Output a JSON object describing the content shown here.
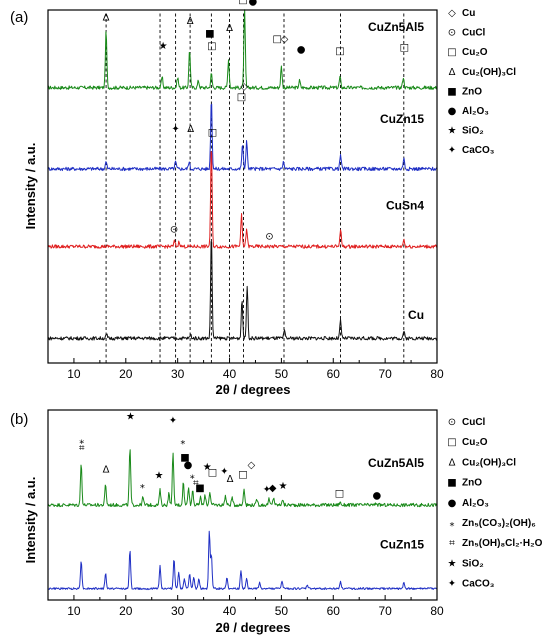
{
  "chart_data": [
    {
      "type": "line",
      "panel_label": "(a)",
      "xlabel": "2θ / degrees",
      "ylabel": "Intensity / a.u.",
      "xlim": [
        5,
        80
      ],
      "xticks": [
        10,
        20,
        30,
        40,
        50,
        60,
        70,
        80
      ],
      "series": [
        {
          "name": "CuZn5Al5",
          "color": "#1a8a1a",
          "offset": 0.78,
          "peaks": [
            [
              16.2,
              0.16
            ],
            [
              27.0,
              0.03
            ],
            [
              30.0,
              0.03
            ],
            [
              32.3,
              0.11
            ],
            [
              34.0,
              0.02
            ],
            [
              36.5,
              0.04
            ],
            [
              39.8,
              0.08
            ],
            [
              42.9,
              0.22
            ],
            [
              50.0,
              0.06
            ],
            [
              53.5,
              0.02
            ],
            [
              61.3,
              0.03
            ],
            [
              73.5,
              0.03
            ]
          ]
        },
        {
          "name": "CuZn15",
          "color": "#1f2fc4",
          "offset": 0.55,
          "peaks": [
            [
              16.2,
              0.02
            ],
            [
              29.6,
              0.02
            ],
            [
              32.2,
              0.02
            ],
            [
              36.5,
              0.2
            ],
            [
              42.5,
              0.07
            ],
            [
              43.3,
              0.08
            ],
            [
              50.4,
              0.02
            ],
            [
              61.4,
              0.04
            ],
            [
              73.6,
              0.03
            ]
          ]
        },
        {
          "name": "CuSn4",
          "color": "#e01f1f",
          "offset": 0.33,
          "peaks": [
            [
              29.4,
              0.015
            ],
            [
              30.3,
              0.015
            ],
            [
              36.5,
              0.29
            ],
            [
              42.3,
              0.09
            ],
            [
              43.3,
              0.05
            ],
            [
              61.4,
              0.05
            ],
            [
              73.6,
              0.02
            ]
          ]
        },
        {
          "name": "Cu",
          "color": "#111111",
          "offset": 0.07,
          "peaks": [
            [
              16.3,
              0.01
            ],
            [
              32.5,
              0.01
            ],
            [
              36.5,
              0.3
            ],
            [
              42.4,
              0.11
            ],
            [
              43.4,
              0.15
            ],
            [
              50.6,
              0.02
            ],
            [
              61.4,
              0.05
            ],
            [
              73.6,
              0.02
            ]
          ]
        }
      ],
      "reference_lines": [
        16.2,
        26.6,
        29.6,
        32.4,
        36.5,
        40.0,
        42.7,
        50.5,
        61.4,
        73.6
      ],
      "annotations": [
        {
          "x": 16.2,
          "y": 0.97,
          "symbol": "Δ",
          "shape": "text"
        },
        {
          "x": 27.2,
          "y": 0.89,
          "symbol": "★",
          "shape": "text"
        },
        {
          "x": 32.4,
          "y": 0.96,
          "symbol": "Δ",
          "shape": "text"
        },
        {
          "x": 36.2,
          "y": 0.925,
          "symbol": "■",
          "shape": "text"
        },
        {
          "x": 36.6,
          "y": 0.89,
          "symbol": "□",
          "shape": "text"
        },
        {
          "x": 40.0,
          "y": 0.94,
          "symbol": "Δ",
          "shape": "text"
        },
        {
          "x": 42.8,
          "y": 1.045,
          "symbol": "◇",
          "shape": "text"
        },
        {
          "x": 42.6,
          "y": 1.02,
          "symbol": "□",
          "shape": "text"
        },
        {
          "x": 44.5,
          "y": 1.015,
          "symbol": "●",
          "shape": "text"
        },
        {
          "x": 49.2,
          "y": 0.91,
          "symbol": "□",
          "shape": "text"
        },
        {
          "x": 50.6,
          "y": 0.91,
          "symbol": "◇",
          "shape": "text"
        },
        {
          "x": 53.8,
          "y": 0.88,
          "symbol": "●",
          "shape": "text"
        },
        {
          "x": 61.3,
          "y": 0.875,
          "symbol": "□",
          "shape": "text"
        },
        {
          "x": 73.7,
          "y": 0.885,
          "symbol": "□",
          "shape": "text"
        },
        {
          "x": 29.6,
          "y": 0.655,
          "symbol": "✦",
          "shape": "text"
        },
        {
          "x": 32.5,
          "y": 0.655,
          "symbol": "Δ",
          "shape": "text"
        },
        {
          "x": 42.8,
          "y": 0.775,
          "symbol": "◇",
          "shape": "text"
        },
        {
          "x": 42.3,
          "y": 0.745,
          "symbol": "□",
          "shape": "text"
        },
        {
          "x": 36.7,
          "y": 0.645,
          "symbol": "□",
          "shape": "text"
        },
        {
          "x": 29.3,
          "y": 0.37,
          "symbol": "⊙",
          "shape": "text"
        },
        {
          "x": 47.7,
          "y": 0.35,
          "symbol": "⊙",
          "shape": "text"
        }
      ],
      "trace_labels": [
        {
          "text": "CuZn5Al5",
          "x": 77.5,
          "y": 0.94
        },
        {
          "text": "CuZn15",
          "x": 77.5,
          "y": 0.68
        },
        {
          "text": "CuSn4",
          "x": 77.5,
          "y": 0.435
        },
        {
          "text": "Cu",
          "x": 77.5,
          "y": 0.125
        }
      ],
      "legend": [
        {
          "symbol": "◇",
          "text": "Cu"
        },
        {
          "symbol": "⊙",
          "text": "CuCl"
        },
        {
          "symbol": "□",
          "text": "Cu₂O"
        },
        {
          "symbol": "Δ",
          "text": "Cu₂(OH)₃Cl"
        },
        {
          "symbol": "■",
          "text": "ZnO"
        },
        {
          "symbol": "●",
          "text": "Al₂O₃"
        },
        {
          "symbol": "★",
          "text": "SiO₂"
        },
        {
          "symbol": "✦",
          "text": "CaCO₃"
        }
      ]
    },
    {
      "type": "line",
      "panel_label": "(b)",
      "xlabel": "2θ / degrees",
      "ylabel": "Intensity / a.u.",
      "xlim": [
        5,
        80
      ],
      "xticks": [
        10,
        20,
        30,
        40,
        50,
        60,
        70,
        80
      ],
      "series": [
        {
          "name": "CuZn5Al5",
          "color": "#1a8a1a",
          "offset": 0.5,
          "peaks": [
            [
              11.4,
              0.22
            ],
            [
              16.1,
              0.11
            ],
            [
              20.8,
              0.3
            ],
            [
              23.3,
              0.04
            ],
            [
              26.6,
              0.08
            ],
            [
              28.3,
              0.06
            ],
            [
              29.1,
              0.27
            ],
            [
              31.1,
              0.12
            ],
            [
              32.1,
              0.1
            ],
            [
              32.9,
              0.08
            ],
            [
              34.4,
              0.04
            ],
            [
              35.3,
              0.05
            ],
            [
              36.2,
              0.07
            ],
            [
              39.2,
              0.05
            ],
            [
              40.5,
              0.04
            ],
            [
              42.8,
              0.09
            ],
            [
              45.3,
              0.03
            ],
            [
              47.6,
              0.03
            ],
            [
              48.5,
              0.04
            ],
            [
              50.2,
              0.03
            ],
            [
              61.3,
              0.015
            ],
            [
              68.3,
              0.01
            ]
          ]
        },
        {
          "name": "CuZn15",
          "color": "#1f2fc4",
          "offset": 0.06,
          "peaks": [
            [
              11.4,
              0.15
            ],
            [
              16.1,
              0.08
            ],
            [
              20.8,
              0.2
            ],
            [
              26.6,
              0.12
            ],
            [
              29.3,
              0.16
            ],
            [
              30.2,
              0.09
            ],
            [
              31.3,
              0.05
            ],
            [
              32.3,
              0.08
            ],
            [
              33.1,
              0.06
            ],
            [
              34.1,
              0.05
            ],
            [
              36.1,
              0.3
            ],
            [
              36.5,
              0.18
            ],
            [
              39.5,
              0.06
            ],
            [
              42.2,
              0.09
            ],
            [
              43.3,
              0.05
            ],
            [
              45.8,
              0.03
            ],
            [
              50.1,
              0.04
            ],
            [
              55.0,
              0.02
            ],
            [
              61.4,
              0.04
            ],
            [
              73.6,
              0.03
            ]
          ]
        }
      ],
      "annotations": [
        {
          "x": 11.5,
          "y": 0.825,
          "symbol": "⁎",
          "shape": "text"
        },
        {
          "x": 11.5,
          "y": 0.785,
          "symbol": "⌗",
          "shape": "text"
        },
        {
          "x": 16.2,
          "y": 0.67,
          "symbol": "Δ",
          "shape": "text"
        },
        {
          "x": 20.9,
          "y": 0.95,
          "symbol": "★",
          "shape": "text"
        },
        {
          "x": 23.2,
          "y": 0.59,
          "symbol": "⁎",
          "shape": "text"
        },
        {
          "x": 26.4,
          "y": 0.64,
          "symbol": "★",
          "shape": "text"
        },
        {
          "x": 29.1,
          "y": 0.93,
          "symbol": "✦",
          "shape": "text"
        },
        {
          "x": 31.0,
          "y": 0.82,
          "symbol": "⁎",
          "shape": "text"
        },
        {
          "x": 31.4,
          "y": 0.735,
          "symbol": "■",
          "shape": "text"
        },
        {
          "x": 32.0,
          "y": 0.695,
          "symbol": "●",
          "shape": "text"
        },
        {
          "x": 32.8,
          "y": 0.64,
          "symbol": "⁎",
          "shape": "text"
        },
        {
          "x": 33.5,
          "y": 0.6,
          "symbol": "⌗",
          "shape": "text"
        },
        {
          "x": 34.3,
          "y": 0.575,
          "symbol": "■",
          "shape": "text"
        },
        {
          "x": 35.7,
          "y": 0.685,
          "symbol": "★",
          "shape": "text"
        },
        {
          "x": 36.7,
          "y": 0.655,
          "symbol": "□",
          "shape": "text"
        },
        {
          "x": 39.0,
          "y": 0.66,
          "symbol": "✦",
          "shape": "text"
        },
        {
          "x": 40.1,
          "y": 0.62,
          "symbol": "Δ",
          "shape": "text"
        },
        {
          "x": 42.6,
          "y": 0.645,
          "symbol": "□",
          "shape": "text"
        },
        {
          "x": 44.2,
          "y": 0.695,
          "symbol": "◇",
          "shape": "text"
        },
        {
          "x": 47.2,
          "y": 0.565,
          "symbol": "✦",
          "shape": "text"
        },
        {
          "x": 48.3,
          "y": 0.575,
          "symbol": "◆",
          "shape": "text"
        },
        {
          "x": 50.3,
          "y": 0.585,
          "symbol": "★",
          "shape": "text"
        },
        {
          "x": 61.2,
          "y": 0.545,
          "symbol": "□",
          "shape": "text"
        },
        {
          "x": 68.4,
          "y": 0.535,
          "symbol": "●",
          "shape": "text"
        }
      ],
      "trace_labels": [
        {
          "text": "CuZn5Al5",
          "x": 77.5,
          "y": 0.7
        },
        {
          "text": "CuZn15",
          "x": 77.5,
          "y": 0.27
        }
      ],
      "legend": [
        {
          "symbol": "⊙",
          "text": "CuCl"
        },
        {
          "symbol": "□",
          "text": "Cu₂O"
        },
        {
          "symbol": "Δ",
          "text": "Cu₂(OH)₃Cl"
        },
        {
          "symbol": "■",
          "text": "ZnO"
        },
        {
          "symbol": "●",
          "text": "Al₂O₃"
        },
        {
          "symbol": "⁎",
          "text": "Zn₅(CO₃)₂(OH)₆"
        },
        {
          "symbol": "⌗",
          "text": "Zn₅(OH)₈Cl₂·H₂O"
        },
        {
          "symbol": "★",
          "text": "SiO₂"
        },
        {
          "symbol": "✦",
          "text": "CaCO₃"
        }
      ]
    }
  ]
}
